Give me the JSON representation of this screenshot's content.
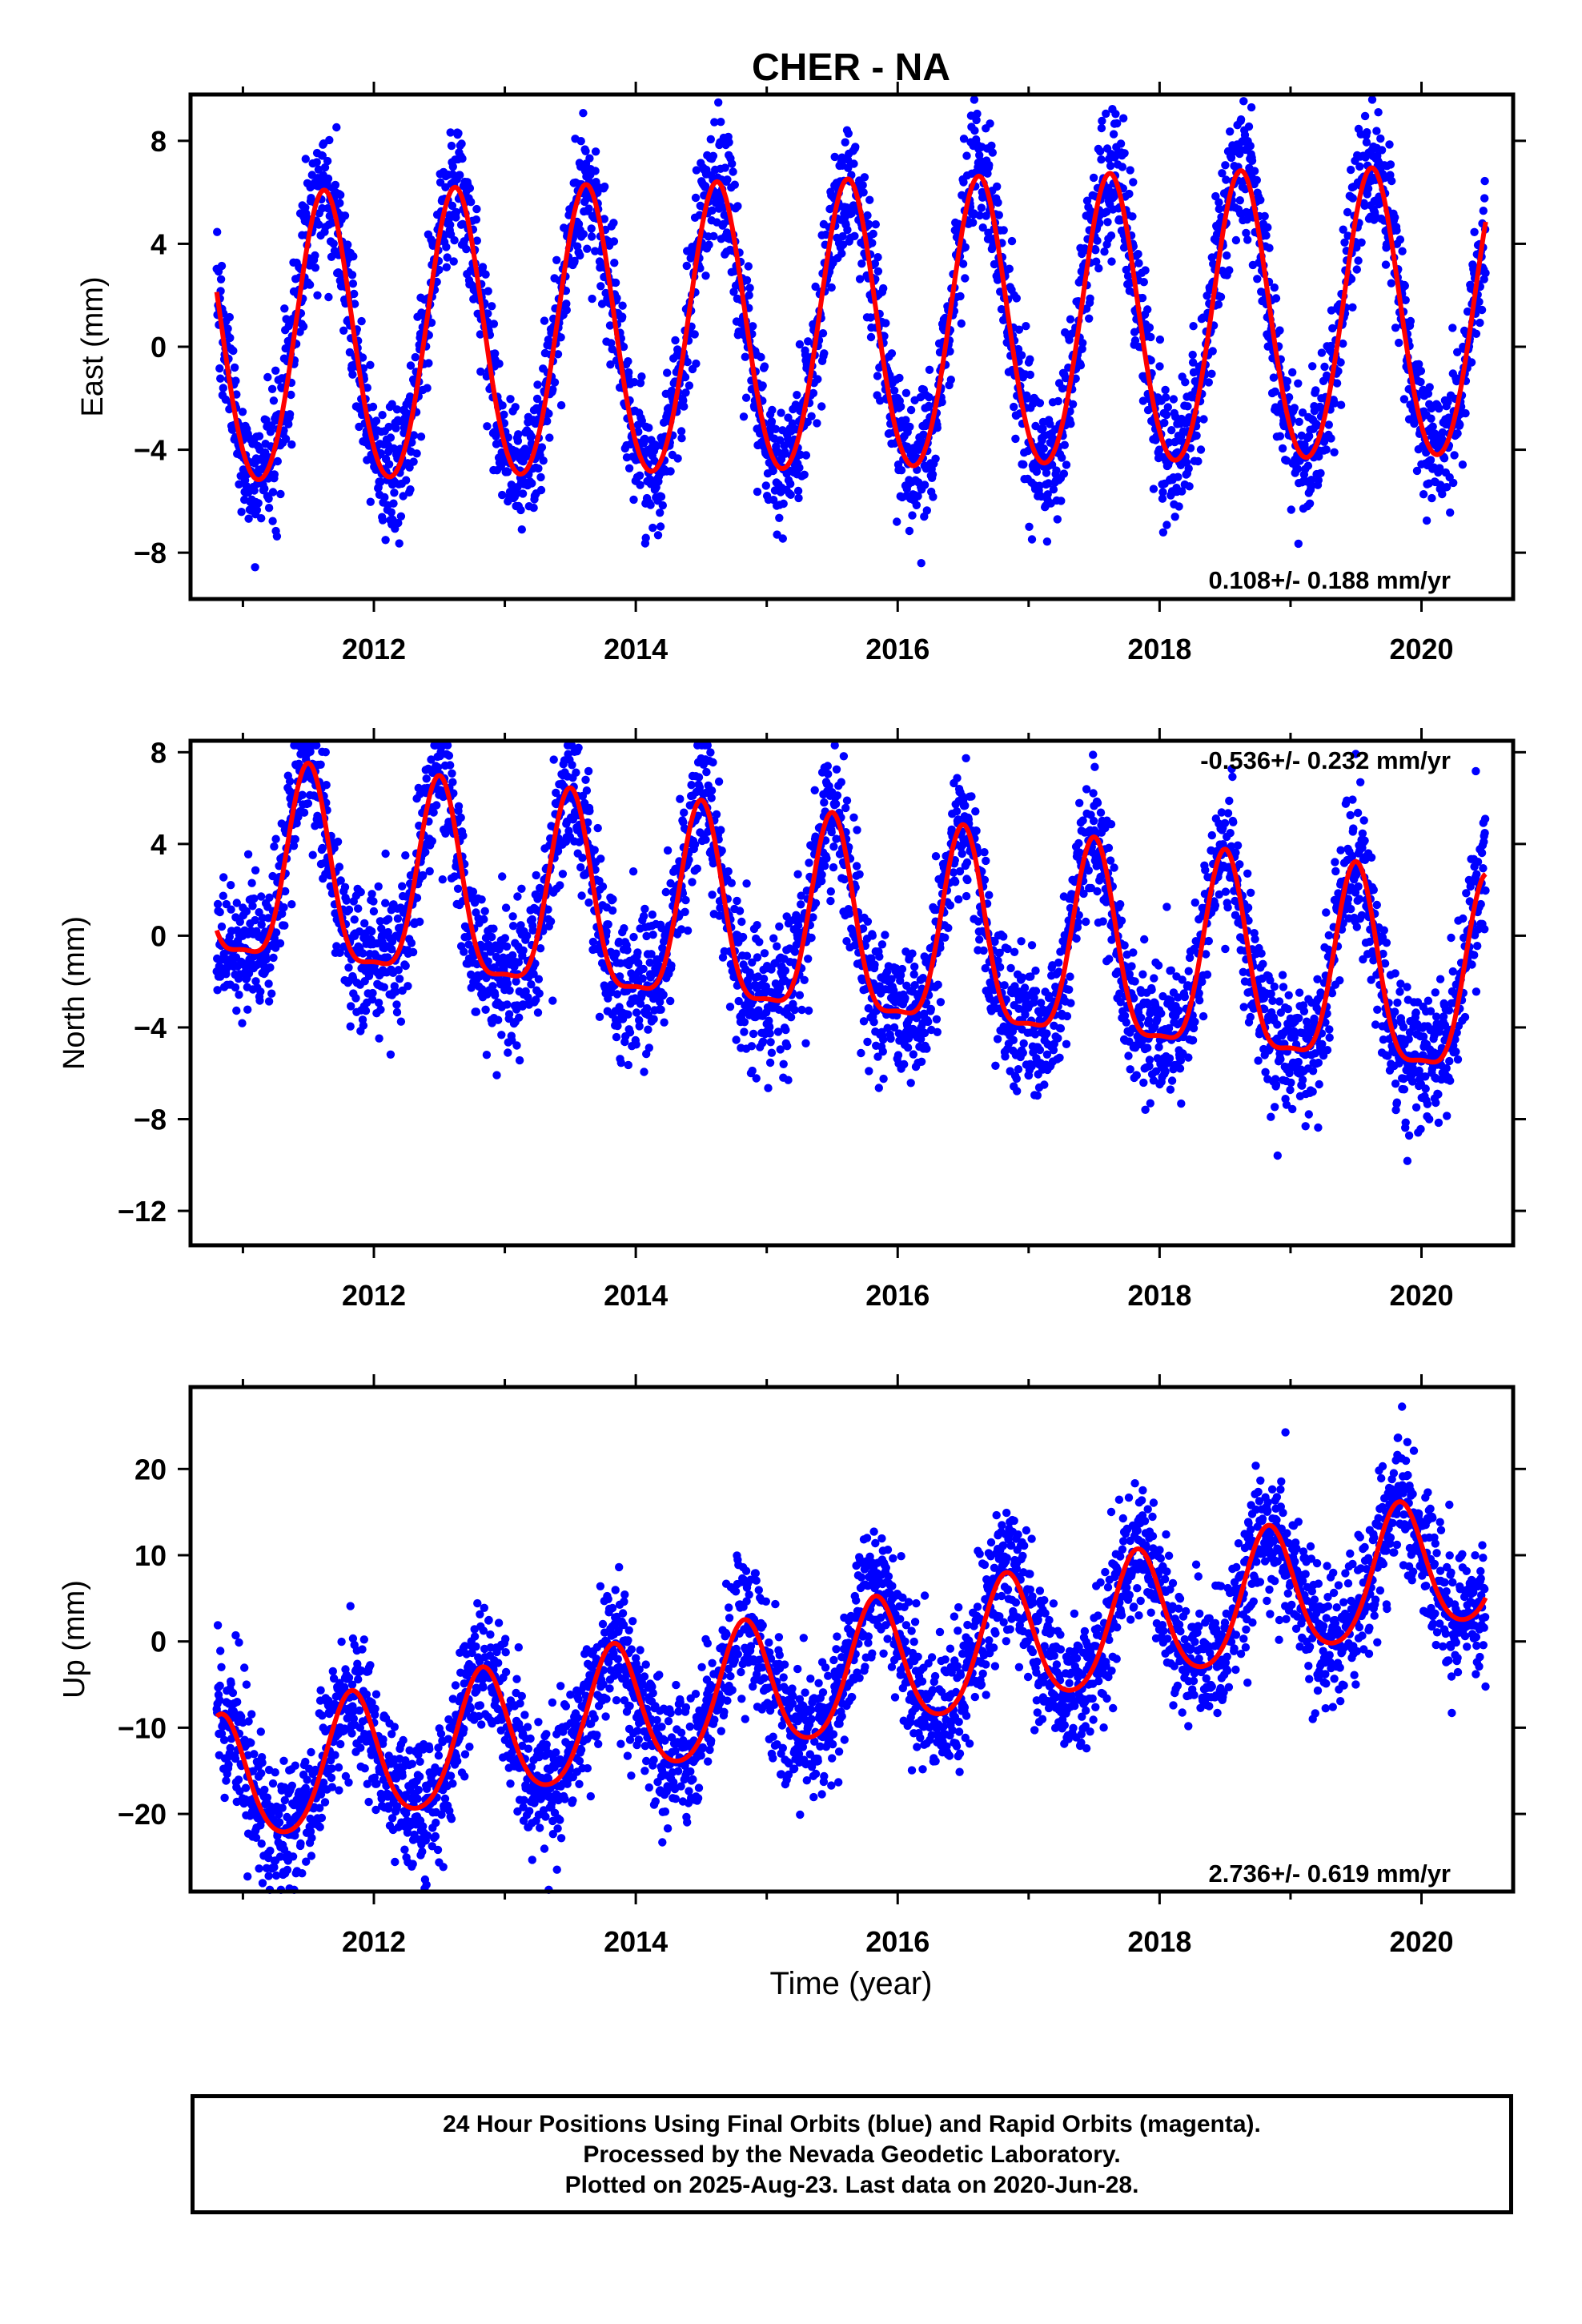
{
  "figure": {
    "title": "CHER - NA",
    "xlabel": "Time (year)",
    "colors": {
      "points": "#0000ff",
      "fit": "#ff0000",
      "frame": "#000000"
    }
  },
  "chart_data": [
    {
      "type": "scatter",
      "title": "CHER - NA",
      "ylabel": "East (mm)",
      "xlim": [
        2010.6,
        2020.7
      ],
      "ylim": [
        -9.8,
        9.8
      ],
      "xticks": [
        "2012",
        "2014",
        "2016",
        "2018",
        "2020"
      ],
      "yticks": [
        "8",
        "4",
        "0",
        "-4",
        "-8"
      ],
      "grid": false,
      "rate_text": "0.108+/- 0.188 mm/yr",
      "rate_position": "bottom-right",
      "x_range_data": [
        2010.8,
        2020.49
      ],
      "model": {
        "rate": 0.108,
        "offset": 0.0,
        "annual_amp": 5.6,
        "peak_year_fraction": 0.62,
        "semiannual_amp": 0.4,
        "scatter": 1.3
      },
      "series": [
        {
          "name": "24 Hour Positions (Final Orbits)",
          "marker": "dot",
          "color": "#0000ff"
        },
        {
          "name": "Model fit",
          "marker": "line",
          "color": "#ff0000"
        }
      ]
    },
    {
      "type": "scatter",
      "ylabel": "North (mm)",
      "xlim": [
        2010.6,
        2020.7
      ],
      "ylim": [
        -13.5,
        8.5
      ],
      "xticks": [
        "2012",
        "2014",
        "2016",
        "2018",
        "2020"
      ],
      "yticks": [
        "8",
        "4",
        "0",
        "-4",
        "-8",
        "-12"
      ],
      "grid": false,
      "rate_text": "-0.536+/- 0.232 mm/yr",
      "rate_position": "top-right",
      "x_range_data": [
        2010.8,
        2020.49
      ],
      "model": {
        "rate": -0.536,
        "offset": 2.5,
        "annual_amp": 4.2,
        "peak_year_fraction": 0.5,
        "semiannual_amp": 1.2,
        "scatter": 1.5
      },
      "series": [
        {
          "name": "24 Hour Positions (Final Orbits)",
          "marker": "dot",
          "color": "#0000ff"
        },
        {
          "name": "Model fit",
          "marker": "line",
          "color": "#ff0000"
        }
      ]
    },
    {
      "type": "scatter",
      "ylabel": "Up (mm)",
      "xlim": [
        2010.6,
        2020.7
      ],
      "ylim": [
        -29,
        29.5
      ],
      "xticks": [
        "2012",
        "2014",
        "2016",
        "2018",
        "2020"
      ],
      "yticks": [
        "20",
        "10",
        "0",
        "-10",
        "-20"
      ],
      "grid": false,
      "rate_text": "2.736+/- 0.619 mm/yr",
      "rate_position": "bottom-right",
      "x_range_data": [
        2010.8,
        2020.49
      ],
      "model": {
        "rate": 2.736,
        "offset": -17.0,
        "annual_amp": 7.5,
        "peak_year_fraction": 0.83,
        "semiannual_amp": 1.0,
        "scatter": 4.0
      },
      "series": [
        {
          "name": "24 Hour Positions (Final Orbits)",
          "marker": "dot",
          "color": "#0000ff"
        },
        {
          "name": "Model fit",
          "marker": "line",
          "color": "#ff0000"
        }
      ]
    }
  ],
  "caption": {
    "line1": "24 Hour Positions Using Final Orbits (blue) and Rapid Orbits (magenta).",
    "line2": "Processed by the Nevada Geodetic Laboratory.",
    "line3": "Plotted on 2025-Aug-23. Last data on 2020-Jun-28."
  }
}
